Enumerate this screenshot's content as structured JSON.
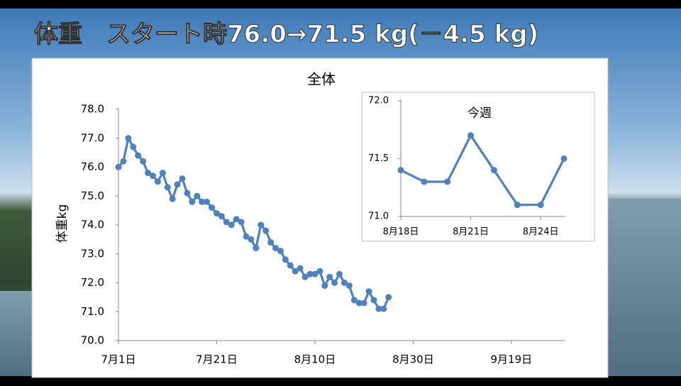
{
  "header": {
    "title": "体重　スタート時76.0→71.5 kg(－4.5 kg)"
  },
  "chart_data": [
    {
      "type": "line",
      "title": "全体",
      "y_label": "体重kg",
      "color": "#4f81bd",
      "x": [
        "07-01",
        "07-02",
        "07-03",
        "07-04",
        "07-05",
        "07-06",
        "07-07",
        "07-08",
        "07-09",
        "07-10",
        "07-11",
        "07-12",
        "07-13",
        "07-14",
        "07-15",
        "07-16",
        "07-17",
        "07-18",
        "07-19",
        "07-20",
        "07-21",
        "07-22",
        "07-23",
        "07-24",
        "07-25",
        "07-26",
        "07-27",
        "07-28",
        "07-29",
        "07-30",
        "07-31",
        "08-01",
        "08-02",
        "08-03",
        "08-04",
        "08-05",
        "08-06",
        "08-07",
        "08-08",
        "08-09",
        "08-10",
        "08-11",
        "08-12",
        "08-13",
        "08-14",
        "08-15",
        "08-16",
        "08-17",
        "08-18",
        "08-19",
        "08-20",
        "08-21",
        "08-22",
        "08-23",
        "08-24",
        "08-25"
      ],
      "series": [
        {
          "name": "体重",
          "color": "#4f81bd",
          "values": [
            76.0,
            76.2,
            77.0,
            76.7,
            76.4,
            76.2,
            75.8,
            75.7,
            75.5,
            75.8,
            75.3,
            74.9,
            75.4,
            75.6,
            75.1,
            74.8,
            75.0,
            74.8,
            74.8,
            74.6,
            74.4,
            74.3,
            74.1,
            74.0,
            74.2,
            74.1,
            73.6,
            73.5,
            73.2,
            74.0,
            73.8,
            73.4,
            73.2,
            73.1,
            72.8,
            72.6,
            72.4,
            72.5,
            72.2,
            72.3,
            72.3,
            72.4,
            71.9,
            72.2,
            72.0,
            72.3,
            72.0,
            71.9,
            71.4,
            71.3,
            71.3,
            71.7,
            71.4,
            71.1,
            71.1,
            71.5
          ]
        }
      ],
      "xlim": [
        "07-01",
        "09-30"
      ],
      "xticks": [
        {
          "value": "07-01",
          "label": "7月1日"
        },
        {
          "value": "07-21",
          "label": "7月21日"
        },
        {
          "value": "08-10",
          "label": "8月10日"
        },
        {
          "value": "08-30",
          "label": "8月30日"
        },
        {
          "value": "09-19",
          "label": "9月19日"
        }
      ],
      "ylim": [
        70,
        78
      ],
      "yticks": [
        {
          "value": 70,
          "label": "70.0"
        },
        {
          "value": 71,
          "label": "71.0"
        },
        {
          "value": 72,
          "label": "72.0"
        },
        {
          "value": 73,
          "label": "73.0"
        },
        {
          "value": 74,
          "label": "74.0"
        },
        {
          "value": 75,
          "label": "75.0"
        },
        {
          "value": 76,
          "label": "76.0"
        },
        {
          "value": 77,
          "label": "77.0"
        },
        {
          "value": 78,
          "label": "78.0"
        }
      ],
      "grid": false
    },
    {
      "type": "line",
      "title": "今週",
      "color": "#4f81bd",
      "categories": [
        "8月18日",
        null,
        null,
        "8月21日",
        null,
        null,
        "8月24日",
        null
      ],
      "series": [
        {
          "name": "今週",
          "color": "#4f81bd",
          "values": [
            71.4,
            71.3,
            71.3,
            71.7,
            71.4,
            71.1,
            71.1,
            71.5
          ]
        }
      ],
      "ylim": [
        71,
        72
      ],
      "yticks": [
        {
          "value": 71,
          "label": "71.0"
        },
        {
          "value": 71.5,
          "label": "71.5"
        },
        {
          "value": 72,
          "label": "72.0"
        }
      ],
      "grid": false
    }
  ]
}
